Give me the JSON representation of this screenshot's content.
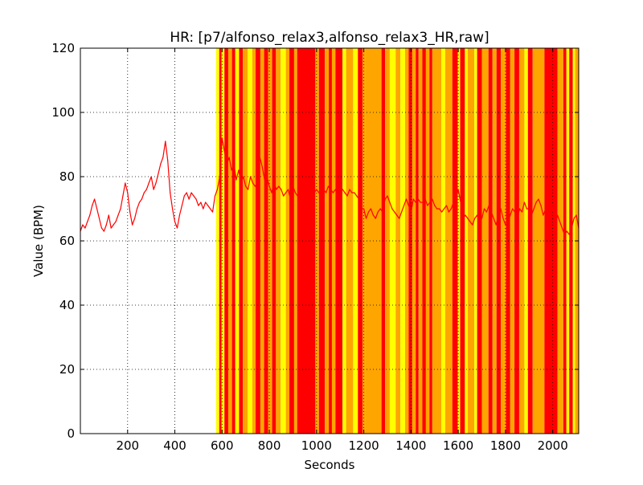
{
  "chart_data": {
    "type": "line",
    "title": "HR: [p7/alfonso_relax3,alfonso_relax3_HR,raw]",
    "xlabel": "Seconds",
    "ylabel": "Value (BPM)",
    "xlim": [
      0,
      2110
    ],
    "ylim": [
      0,
      120
    ],
    "xticks": [
      200,
      400,
      600,
      800,
      1000,
      1200,
      1400,
      1600,
      1800,
      2000
    ],
    "yticks": [
      0,
      20,
      40,
      60,
      80,
      100,
      120
    ],
    "grid": true,
    "grid_style": "dotted",
    "background_bands_start": 575,
    "background_colors": {
      "yellow": "#ffff00",
      "orange": "#ffa500",
      "red": "#ff0000"
    },
    "background_bands": [
      {
        "x0": 575,
        "x1": 588,
        "color": "yellow"
      },
      {
        "x0": 588,
        "x1": 598,
        "color": "red"
      },
      {
        "x0": 598,
        "x1": 610,
        "color": "yellow"
      },
      {
        "x0": 610,
        "x1": 626,
        "color": "red"
      },
      {
        "x0": 626,
        "x1": 642,
        "color": "orange"
      },
      {
        "x0": 642,
        "x1": 656,
        "color": "red"
      },
      {
        "x0": 656,
        "x1": 672,
        "color": "yellow"
      },
      {
        "x0": 672,
        "x1": 688,
        "color": "red"
      },
      {
        "x0": 688,
        "x1": 708,
        "color": "orange"
      },
      {
        "x0": 708,
        "x1": 728,
        "color": "yellow"
      },
      {
        "x0": 728,
        "x1": 742,
        "color": "orange"
      },
      {
        "x0": 742,
        "x1": 762,
        "color": "red"
      },
      {
        "x0": 762,
        "x1": 778,
        "color": "orange"
      },
      {
        "x0": 778,
        "x1": 795,
        "color": "red"
      },
      {
        "x0": 795,
        "x1": 812,
        "color": "orange"
      },
      {
        "x0": 812,
        "x1": 828,
        "color": "red"
      },
      {
        "x0": 828,
        "x1": 848,
        "color": "orange"
      },
      {
        "x0": 848,
        "x1": 870,
        "color": "yellow"
      },
      {
        "x0": 870,
        "x1": 885,
        "color": "orange"
      },
      {
        "x0": 885,
        "x1": 905,
        "color": "red"
      },
      {
        "x0": 905,
        "x1": 918,
        "color": "orange"
      },
      {
        "x0": 918,
        "x1": 995,
        "color": "red"
      },
      {
        "x0": 995,
        "x1": 1010,
        "color": "orange"
      },
      {
        "x0": 1010,
        "x1": 1035,
        "color": "red"
      },
      {
        "x0": 1035,
        "x1": 1052,
        "color": "orange"
      },
      {
        "x0": 1052,
        "x1": 1065,
        "color": "red"
      },
      {
        "x0": 1065,
        "x1": 1080,
        "color": "orange"
      },
      {
        "x0": 1080,
        "x1": 1110,
        "color": "red"
      },
      {
        "x0": 1110,
        "x1": 1125,
        "color": "yellow"
      },
      {
        "x0": 1125,
        "x1": 1155,
        "color": "orange"
      },
      {
        "x0": 1155,
        "x1": 1175,
        "color": "yellow"
      },
      {
        "x0": 1175,
        "x1": 1195,
        "color": "red"
      },
      {
        "x0": 1195,
        "x1": 1205,
        "color": "orange"
      },
      {
        "x0": 1205,
        "x1": 1275,
        "color": "orange"
      },
      {
        "x0": 1275,
        "x1": 1290,
        "color": "red"
      },
      {
        "x0": 1290,
        "x1": 1310,
        "color": "orange"
      },
      {
        "x0": 1310,
        "x1": 1335,
        "color": "yellow"
      },
      {
        "x0": 1335,
        "x1": 1355,
        "color": "orange"
      },
      {
        "x0": 1355,
        "x1": 1375,
        "color": "yellow"
      },
      {
        "x0": 1375,
        "x1": 1390,
        "color": "orange"
      },
      {
        "x0": 1390,
        "x1": 1405,
        "color": "red"
      },
      {
        "x0": 1405,
        "x1": 1420,
        "color": "orange"
      },
      {
        "x0": 1420,
        "x1": 1432,
        "color": "red"
      },
      {
        "x0": 1432,
        "x1": 1448,
        "color": "orange"
      },
      {
        "x0": 1448,
        "x1": 1463,
        "color": "red"
      },
      {
        "x0": 1463,
        "x1": 1478,
        "color": "orange"
      },
      {
        "x0": 1478,
        "x1": 1490,
        "color": "red"
      },
      {
        "x0": 1490,
        "x1": 1528,
        "color": "orange"
      },
      {
        "x0": 1528,
        "x1": 1545,
        "color": "yellow"
      },
      {
        "x0": 1545,
        "x1": 1575,
        "color": "orange"
      },
      {
        "x0": 1575,
        "x1": 1598,
        "color": "red"
      },
      {
        "x0": 1598,
        "x1": 1608,
        "color": "yellow"
      },
      {
        "x0": 1608,
        "x1": 1628,
        "color": "red"
      },
      {
        "x0": 1628,
        "x1": 1640,
        "color": "yellow"
      },
      {
        "x0": 1640,
        "x1": 1668,
        "color": "orange"
      },
      {
        "x0": 1668,
        "x1": 1680,
        "color": "yellow"
      },
      {
        "x0": 1680,
        "x1": 1700,
        "color": "red"
      },
      {
        "x0": 1700,
        "x1": 1728,
        "color": "orange"
      },
      {
        "x0": 1728,
        "x1": 1745,
        "color": "red"
      },
      {
        "x0": 1745,
        "x1": 1762,
        "color": "orange"
      },
      {
        "x0": 1762,
        "x1": 1780,
        "color": "red"
      },
      {
        "x0": 1780,
        "x1": 1802,
        "color": "orange"
      },
      {
        "x0": 1802,
        "x1": 1820,
        "color": "red"
      },
      {
        "x0": 1820,
        "x1": 1838,
        "color": "orange"
      },
      {
        "x0": 1838,
        "x1": 1858,
        "color": "red"
      },
      {
        "x0": 1858,
        "x1": 1880,
        "color": "orange"
      },
      {
        "x0": 1880,
        "x1": 1895,
        "color": "yellow"
      },
      {
        "x0": 1895,
        "x1": 1915,
        "color": "red"
      },
      {
        "x0": 1915,
        "x1": 1965,
        "color": "orange"
      },
      {
        "x0": 1965,
        "x1": 2020,
        "color": "red"
      },
      {
        "x0": 2020,
        "x1": 2045,
        "color": "orange"
      },
      {
        "x0": 2045,
        "x1": 2058,
        "color": "red"
      },
      {
        "x0": 2058,
        "x1": 2070,
        "color": "yellow"
      },
      {
        "x0": 2070,
        "x1": 2085,
        "color": "red"
      },
      {
        "x0": 2085,
        "x1": 2095,
        "color": "yellow"
      },
      {
        "x0": 2095,
        "x1": 2110,
        "color": "orange"
      }
    ],
    "series": [
      {
        "color": "#ff0000",
        "x": [
          0,
          10,
          20,
          30,
          40,
          50,
          60,
          70,
          80,
          90,
          100,
          110,
          120,
          130,
          140,
          150,
          160,
          170,
          180,
          190,
          200,
          210,
          220,
          230,
          240,
          250,
          260,
          270,
          280,
          290,
          300,
          310,
          320,
          330,
          340,
          350,
          360,
          370,
          380,
          390,
          400,
          410,
          420,
          430,
          440,
          450,
          460,
          470,
          480,
          490,
          500,
          510,
          520,
          530,
          540,
          550,
          560,
          570,
          580,
          590,
          600,
          610,
          620,
          630,
          640,
          650,
          660,
          670,
          680,
          690,
          700,
          710,
          720,
          730,
          740,
          750,
          760,
          770,
          780,
          790,
          800,
          810,
          820,
          830,
          840,
          850,
          860,
          870,
          880,
          890,
          900,
          910,
          920,
          930,
          940,
          950,
          960,
          970,
          980,
          990,
          1000,
          1010,
          1020,
          1030,
          1040,
          1050,
          1060,
          1070,
          1080,
          1090,
          1100,
          1110,
          1120,
          1130,
          1140,
          1150,
          1160,
          1170,
          1180,
          1190,
          1200,
          1210,
          1220,
          1230,
          1240,
          1250,
          1260,
          1270,
          1280,
          1290,
          1300,
          1310,
          1320,
          1330,
          1340,
          1350,
          1360,
          1370,
          1380,
          1390,
          1400,
          1410,
          1420,
          1430,
          1440,
          1450,
          1460,
          1470,
          1480,
          1490,
          1500,
          1510,
          1520,
          1530,
          1540,
          1550,
          1560,
          1570,
          1580,
          1590,
          1600,
          1610,
          1620,
          1630,
          1640,
          1650,
          1660,
          1670,
          1680,
          1690,
          1700,
          1710,
          1720,
          1730,
          1740,
          1750,
          1760,
          1770,
          1780,
          1790,
          1800,
          1810,
          1820,
          1830,
          1840,
          1850,
          1860,
          1870,
          1880,
          1890,
          1900,
          1910,
          1920,
          1930,
          1940,
          1950,
          1960,
          1970,
          1980,
          1990,
          2000,
          2010,
          2020,
          2030,
          2040,
          2050,
          2060,
          2070,
          2080,
          2090,
          2100,
          2110
        ],
        "y": [
          63,
          65,
          64,
          66,
          68,
          71,
          73,
          70,
          67,
          64,
          63,
          65,
          68,
          64,
          65,
          66,
          68,
          70,
          74,
          78,
          75,
          69,
          65,
          67,
          70,
          72,
          73,
          75,
          76,
          78,
          80,
          76,
          78,
          81,
          84,
          86,
          91,
          85,
          75,
          70,
          66,
          64,
          68,
          71,
          74,
          75,
          73,
          75,
          74,
          73,
          71,
          72,
          70,
          72,
          71,
          70,
          69,
          74,
          76,
          80,
          92,
          88,
          84,
          86,
          82,
          84,
          79,
          82,
          78,
          80,
          77,
          76,
          80,
          78,
          77,
          78,
          86,
          83,
          79,
          80,
          77,
          75,
          78,
          76,
          77,
          76,
          74,
          75,
          76,
          73,
          77,
          75,
          74,
          73,
          74,
          76,
          75,
          74,
          73,
          75,
          76,
          75,
          74,
          76,
          75,
          77,
          76,
          75,
          76,
          75,
          77,
          76,
          75,
          74,
          76,
          75,
          75,
          74,
          73,
          70,
          70,
          67,
          69,
          70,
          68,
          67,
          69,
          70,
          69,
          73,
          74,
          72,
          70,
          69,
          68,
          67,
          69,
          71,
          73,
          71,
          69,
          73,
          72,
          73,
          72,
          72,
          73,
          71,
          72,
          73,
          71,
          70,
          70,
          69,
          70,
          71,
          69,
          70,
          72,
          73,
          76,
          72,
          67,
          68,
          67,
          66,
          65,
          67,
          68,
          66,
          67,
          70,
          69,
          71,
          69,
          67,
          65,
          68,
          70,
          67,
          65,
          66,
          68,
          70,
          69,
          67,
          70,
          69,
          72,
          70,
          70,
          68,
          70,
          72,
          73,
          71,
          68,
          70,
          72,
          75,
          70,
          64,
          68,
          66,
          64,
          62,
          63,
          62,
          64,
          67,
          68,
          64
        ]
      }
    ]
  }
}
